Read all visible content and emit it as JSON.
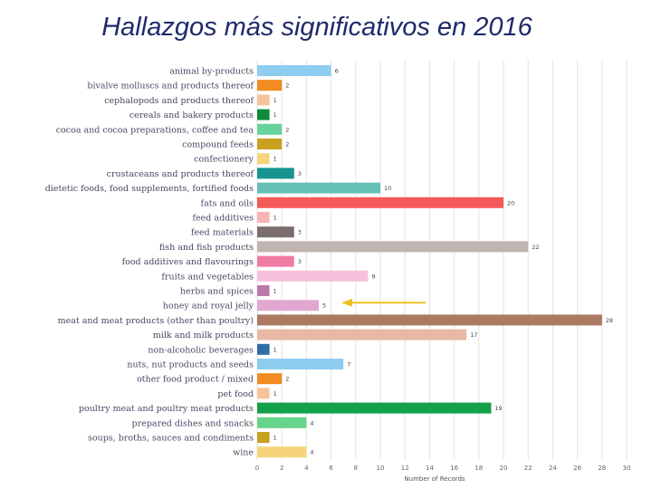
{
  "slide": {
    "title": "Hallazgos más significativos en 2016"
  },
  "colors": {
    "title": "#1f2a6b",
    "arrow": "#f0c020",
    "gridline": "#e3e3e3"
  },
  "chart_data": {
    "type": "bar",
    "orientation": "horizontal",
    "title": "",
    "xlabel": "Number of Records",
    "ylabel": "",
    "xlim": [
      0,
      30
    ],
    "xticks": [
      0,
      2,
      4,
      6,
      8,
      10,
      12,
      14,
      16,
      18,
      20,
      22,
      24,
      26,
      28,
      30
    ],
    "grid": true,
    "categories": [
      "animal by-products",
      "bivalve molluscs and products thereof",
      "cephalopods and products thereof",
      "cereals and bakery products",
      "cocoa and cocoa preparations, coffee and tea",
      "compound feeds",
      "confectionery",
      "crustaceans and products thereof",
      "dietetic foods, food supplements, fortified foods",
      "fats and oils",
      "feed additives",
      "feed materials",
      "fish and fish products",
      "food additives and flavourings",
      "fruits and vegetables",
      "herbs and spices",
      "honey and royal jelly",
      "meat and meat products (other than poultry)",
      "milk and milk products",
      "non-alcoholic beverages",
      "nuts, nut products and seeds",
      "other food product / mixed",
      "pet food",
      "poultry meat and poultry meat products",
      "prepared dishes and snacks",
      "soups, broths, sauces and condiments",
      "wine"
    ],
    "values": [
      6,
      2,
      1,
      1,
      2,
      2,
      1,
      3,
      10,
      20,
      1,
      3,
      22,
      3,
      9,
      1,
      5,
      28,
      17,
      1,
      7,
      2,
      1,
      19,
      4,
      1,
      4
    ],
    "bar_colors": [
      "#8ecdf0",
      "#f28b20",
      "#f7c49a",
      "#0d8c3c",
      "#66d49a",
      "#c8a11e",
      "#f7d47a",
      "#17948f",
      "#66c0b8",
      "#f45a5a",
      "#f8b4b4",
      "#7a6e6e",
      "#c0b4b0",
      "#ef7aa4",
      "#f7c0dc",
      "#b97aa8",
      "#e0a8d0",
      "#ac7a62",
      "#e8b8a4",
      "#2e6ea8",
      "#8ecdf0",
      "#f28b20",
      "#f7c49a",
      "#13a04a",
      "#66d48a",
      "#c8a11e",
      "#f7d47a"
    ],
    "annotation": "arrow pointing to honey and royal jelly"
  }
}
